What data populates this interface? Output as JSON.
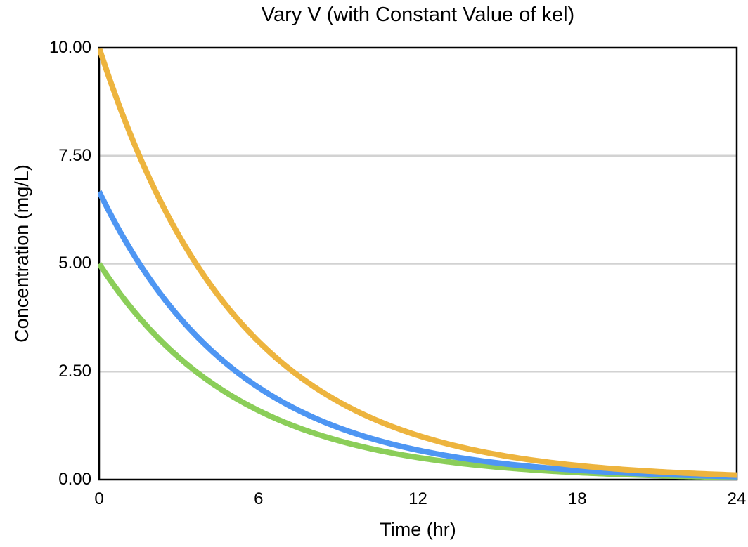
{
  "chart_data": {
    "type": "line",
    "title": "Vary V (with Constant Value of kel)",
    "xlabel": "Time (hr)",
    "ylabel": "Concentration (mg/L)",
    "xlim": [
      0,
      24
    ],
    "ylim": [
      0,
      10
    ],
    "x_ticks": {
      "values": [
        0,
        6,
        12,
        18,
        24
      ],
      "labels": [
        "0",
        "6",
        "12",
        "18",
        "24"
      ]
    },
    "y_ticks": {
      "values": [
        0,
        2.5,
        5,
        7.5,
        10
      ],
      "labels": [
        "0.00",
        "2.50",
        "5.00",
        "7.50",
        "10.00"
      ]
    },
    "grid": "horizontal gridlines at inner y ticks only",
    "legend_position": "none",
    "frame_color": "#000000",
    "grid_color": "#d2d2d2",
    "model": "C(t) = C0 * exp(-kel * t)",
    "kel_per_hr": 0.19,
    "x_hours": [
      0,
      1,
      2,
      3,
      4,
      5,
      6,
      7,
      8,
      9,
      10,
      11,
      12,
      13,
      14,
      15,
      16,
      17,
      18,
      19,
      20,
      21,
      22,
      23,
      24
    ],
    "series": [
      {
        "name": "yellow",
        "color": "#edb43e",
        "c0": 10.0,
        "values": [
          10.0,
          8.27,
          6.84,
          5.66,
          4.68,
          3.87,
          3.2,
          2.64,
          2.19,
          1.81,
          1.5,
          1.24,
          1.02,
          0.85,
          0.7,
          0.58,
          0.48,
          0.4,
          0.33,
          0.27,
          0.22,
          0.19,
          0.15,
          0.13,
          0.1
        ]
      },
      {
        "name": "blue",
        "color": "#4e96f3",
        "c0": 6.67,
        "values": [
          6.67,
          5.52,
          4.56,
          3.77,
          3.12,
          2.58,
          2.13,
          1.76,
          1.46,
          1.21,
          1.0,
          0.83,
          0.68,
          0.56,
          0.47,
          0.39,
          0.32,
          0.26,
          0.22,
          0.18,
          0.15,
          0.12,
          0.1,
          0.08,
          0.07
        ]
      },
      {
        "name": "green",
        "color": "#8bce59",
        "c0": 5.0,
        "values": [
          5.0,
          4.13,
          3.42,
          2.83,
          2.34,
          1.93,
          1.6,
          1.32,
          1.09,
          0.9,
          0.75,
          0.62,
          0.51,
          0.42,
          0.35,
          0.29,
          0.24,
          0.2,
          0.16,
          0.14,
          0.11,
          0.09,
          0.08,
          0.06,
          0.05
        ]
      }
    ]
  }
}
